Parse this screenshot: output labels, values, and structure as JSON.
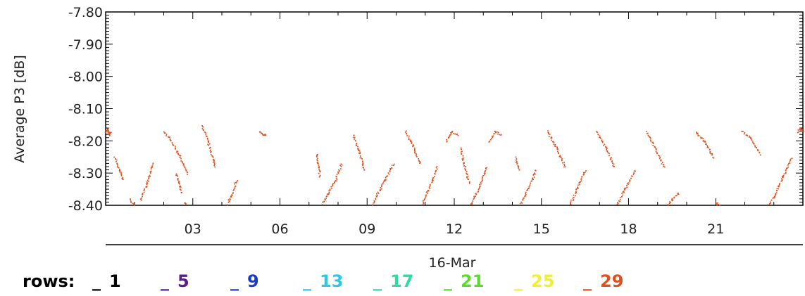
{
  "chart_data": {
    "type": "scatter",
    "ylabel": "Average P3 [dB]",
    "ylim": [
      -8.4,
      -7.8
    ],
    "yticks": [
      -7.8,
      -7.9,
      -8.0,
      -8.1,
      -8.2,
      -8.3,
      -8.4
    ],
    "ytick_labels": [
      "-7.80",
      "-7.90",
      "-8.00",
      "-8.10",
      "-8.20",
      "-8.30",
      "-8.40"
    ],
    "xlim": [
      0,
      24
    ],
    "xticks": [
      3,
      6,
      9,
      12,
      15,
      18,
      21
    ],
    "xtick_labels": [
      "03",
      "06",
      "09",
      "12",
      "15",
      "18",
      "21"
    ],
    "date_label": "16-Mar",
    "grid": false,
    "legend": {
      "title": "rows:",
      "placement": "bottom",
      "entries": [
        {
          "marker": "_",
          "label": "1",
          "color": "#000000"
        },
        {
          "marker": "_",
          "label": "5",
          "color": "#5a1e8c"
        },
        {
          "marker": "_",
          "label": "9",
          "color": "#1a3cc8"
        },
        {
          "marker": "_",
          "label": "13",
          "color": "#2ec8e6"
        },
        {
          "marker": "_",
          "label": "17",
          "color": "#2edca0"
        },
        {
          "marker": "_",
          "label": "21",
          "color": "#5adc2e"
        },
        {
          "marker": "_",
          "label": "25",
          "color": "#f0f02e"
        },
        {
          "marker": "_",
          "label": "29",
          "color": "#e0501e"
        }
      ]
    },
    "series": [
      {
        "color": "#e0501e",
        "segments": [
          {
            "x": [
              0.0,
              0.05,
              0.1,
              0.15
            ],
            "y": [
              -8.17,
              -8.16,
              -8.18,
              -8.17
            ]
          },
          {
            "x": [
              0.3,
              0.45,
              0.6
            ],
            "y": [
              -8.25,
              -8.29,
              -8.32
            ]
          },
          {
            "x": [
              0.8,
              1.0,
              1.2
            ],
            "y": [
              -8.38,
              -8.4,
              -8.41
            ]
          },
          {
            "x": [
              1.2,
              1.4,
              1.6
            ],
            "y": [
              -8.38,
              -8.33,
              -8.27
            ]
          },
          {
            "x": [
              2.0,
              2.25,
              2.5,
              2.7,
              2.8
            ],
            "y": [
              -8.17,
              -8.2,
              -8.24,
              -8.28,
              -8.3
            ]
          },
          {
            "x": [
              2.4,
              2.5,
              2.6
            ],
            "y": [
              -8.3,
              -8.33,
              -8.36
            ]
          },
          {
            "x": [
              2.7,
              2.8
            ],
            "y": [
              -8.39,
              -8.41
            ]
          },
          {
            "x": [
              3.3,
              3.5,
              3.7,
              3.75
            ],
            "y": [
              -8.15,
              -8.2,
              -8.26,
              -8.28
            ]
          },
          {
            "x": [
              4.1,
              4.3,
              4.5
            ],
            "y": [
              -8.41,
              -8.37,
              -8.32
            ]
          },
          {
            "x": [
              5.3,
              5.4,
              5.5
            ],
            "y": [
              -8.17,
              -8.18,
              -8.18
            ]
          },
          {
            "x": [
              7.25,
              7.3,
              7.35
            ],
            "y": [
              -8.24,
              -8.27,
              -8.31
            ]
          },
          {
            "x": [
              7.4,
              7.65,
              7.9,
              8.1
            ],
            "y": [
              -8.4,
              -8.36,
              -8.32,
              -8.27
            ]
          },
          {
            "x": [
              8.5,
              8.7,
              8.9
            ],
            "y": [
              -8.18,
              -8.23,
              -8.29
            ]
          },
          {
            "x": [
              9.1,
              9.3,
              9.6,
              9.9
            ],
            "y": [
              -8.41,
              -8.37,
              -8.32,
              -8.27
            ]
          },
          {
            "x": [
              10.3,
              10.55,
              10.8
            ],
            "y": [
              -8.17,
              -8.21,
              -8.27
            ]
          },
          {
            "x": [
              10.8,
              11.1,
              11.4
            ],
            "y": [
              -8.41,
              -8.35,
              -8.28
            ]
          },
          {
            "x": [
              11.7,
              11.9,
              12.1
            ],
            "y": [
              -8.2,
              -8.17,
              -8.18
            ]
          },
          {
            "x": [
              12.2,
              12.35,
              12.5
            ],
            "y": [
              -8.22,
              -8.28,
              -8.33
            ]
          },
          {
            "x": [
              12.5,
              12.8,
              13.1
            ],
            "y": [
              -8.41,
              -8.35,
              -8.28
            ]
          },
          {
            "x": [
              13.2,
              13.4,
              13.6
            ],
            "y": [
              -8.2,
              -8.17,
              -8.18
            ]
          },
          {
            "x": [
              14.1,
              14.2
            ],
            "y": [
              -8.25,
              -8.29
            ]
          },
          {
            "x": [
              14.2,
              14.5,
              14.8
            ],
            "y": [
              -8.41,
              -8.35,
              -8.29
            ]
          },
          {
            "x": [
              15.2,
              15.5,
              15.8
            ],
            "y": [
              -8.17,
              -8.22,
              -8.28
            ]
          },
          {
            "x": [
              15.9,
              16.2,
              16.5
            ],
            "y": [
              -8.41,
              -8.35,
              -8.29
            ]
          },
          {
            "x": [
              16.9,
              17.2,
              17.5
            ],
            "y": [
              -8.17,
              -8.22,
              -8.28
            ]
          },
          {
            "x": [
              17.5,
              17.85,
              18.2
            ],
            "y": [
              -8.41,
              -8.35,
              -8.29
            ]
          },
          {
            "x": [
              18.6,
              18.9,
              19.2
            ],
            "y": [
              -8.17,
              -8.22,
              -8.28
            ]
          },
          {
            "x": [
              19.3,
              19.5,
              19.7
            ],
            "y": [
              -8.4,
              -8.38,
              -8.36
            ]
          },
          {
            "x": [
              20.3,
              20.6,
              20.9
            ],
            "y": [
              -8.17,
              -8.2,
              -8.25
            ]
          },
          {
            "x": [
              21.0,
              21.1
            ],
            "y": [
              -8.39,
              -8.4
            ]
          },
          {
            "x": [
              21.9,
              22.2,
              22.5
            ],
            "y": [
              -8.17,
              -8.19,
              -8.24
            ]
          },
          {
            "x": [
              22.7,
              23.0,
              23.3,
              23.6
            ],
            "y": [
              -8.41,
              -8.37,
              -8.31,
              -8.25
            ]
          },
          {
            "x": [
              23.8,
              23.9,
              24.0
            ],
            "y": [
              -8.17,
              -8.16,
              -8.17
            ]
          }
        ]
      }
    ]
  }
}
